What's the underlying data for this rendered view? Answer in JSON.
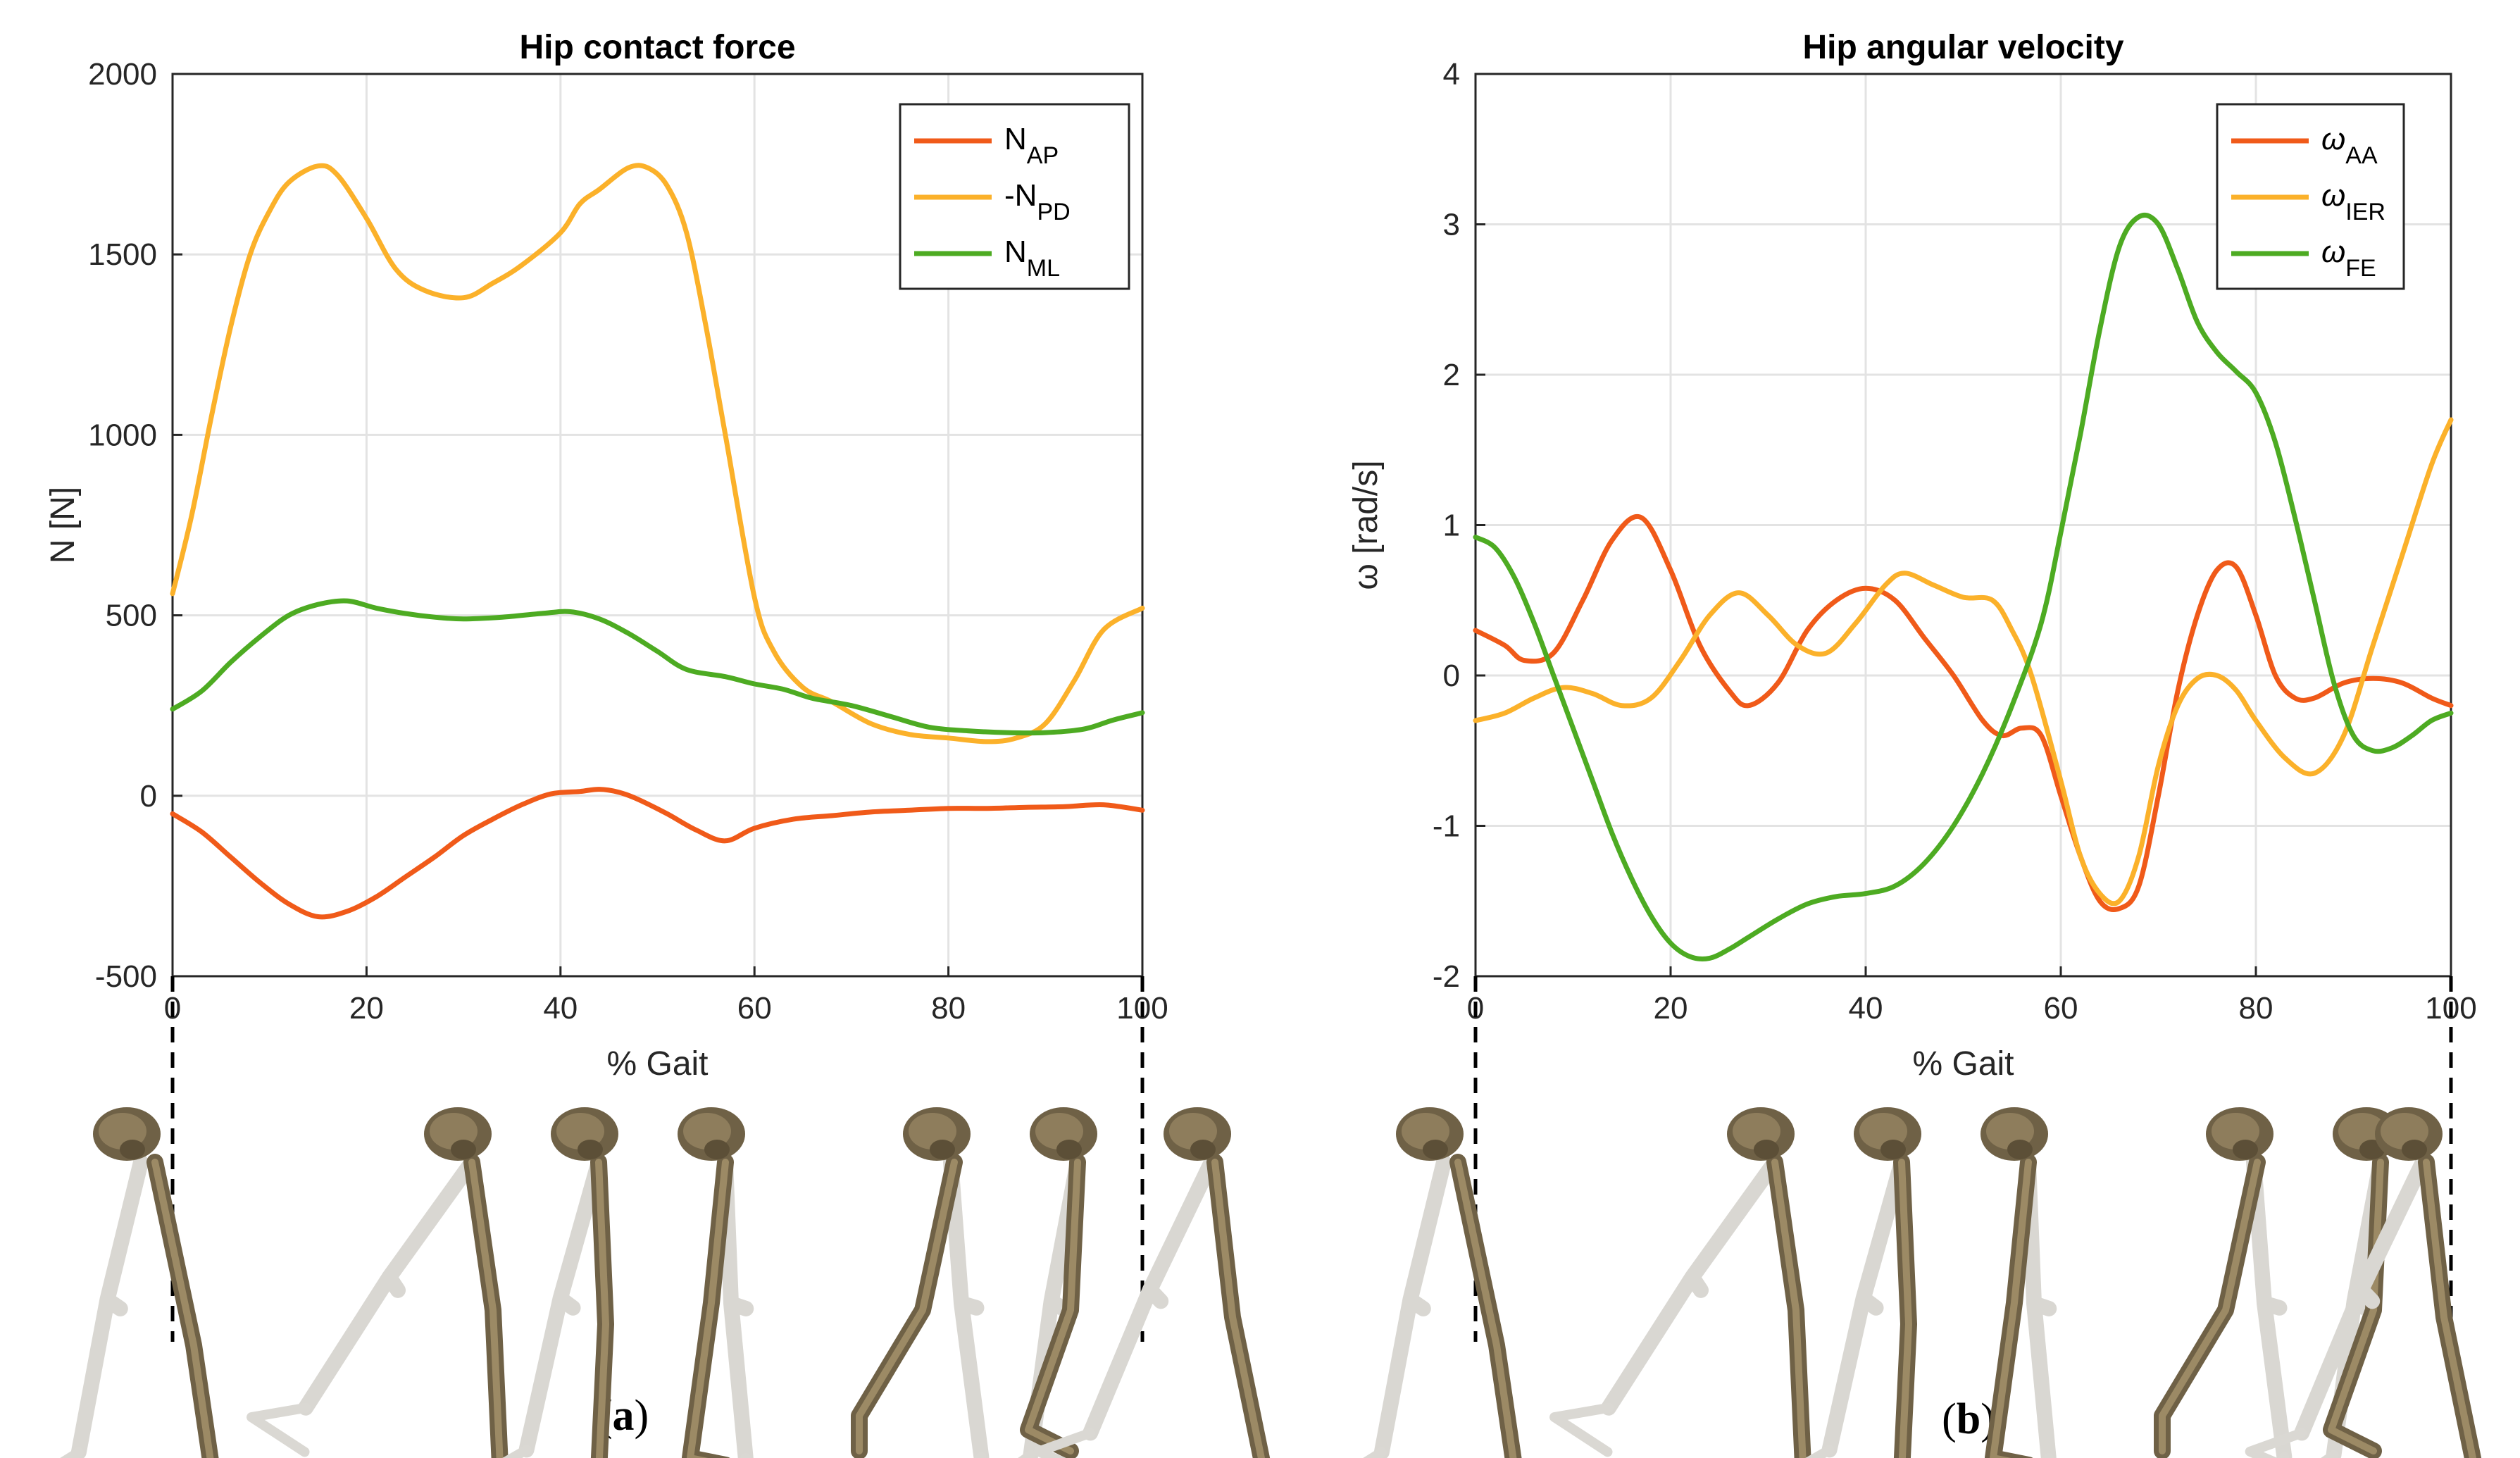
{
  "chart_data": [
    {
      "type": "line",
      "panel_label": "(a)",
      "title": "Hip contact force",
      "xlabel": "% Gait",
      "ylabel": "N [N]",
      "xlim": [
        0,
        100
      ],
      "ylim": [
        -500,
        2000
      ],
      "xticks": [
        "0",
        "20",
        "40",
        "60",
        "80",
        "100"
      ],
      "yticks": [
        "-500",
        "0",
        "500",
        "1000",
        "1500",
        "2000"
      ],
      "grid": true,
      "legend": "top-right",
      "series": [
        {
          "name": "N_AP",
          "label_main": "N",
          "label_sub": "AP",
          "color": "#f05a19",
          "x": [
            0,
            3,
            6,
            9,
            12,
            15,
            18,
            21,
            24,
            27,
            30,
            33,
            36,
            39,
            42,
            44,
            46,
            48,
            51,
            54,
            57,
            60,
            64,
            68,
            72,
            76,
            80,
            84,
            88,
            92,
            96,
            100
          ],
          "y": [
            -50,
            -100,
            -170,
            -240,
            -300,
            -335,
            -320,
            -280,
            -225,
            -170,
            -110,
            -65,
            -25,
            5,
            12,
            18,
            10,
            -10,
            -50,
            -95,
            -125,
            -90,
            -65,
            -55,
            -45,
            -40,
            -35,
            -35,
            -32,
            -30,
            -25,
            -40
          ]
        },
        {
          "name": "-N_PD",
          "label_main": "-N",
          "label_sub": "PD",
          "color": "#fbb12a",
          "x": [
            0,
            2,
            4,
            6,
            8,
            10,
            12,
            15,
            17,
            20,
            23,
            26,
            30,
            33,
            36,
            40,
            42,
            44,
            47,
            49,
            51,
            53,
            55,
            57,
            60,
            62,
            65,
            68,
            72,
            76,
            80,
            84,
            87,
            90,
            93,
            96,
            100
          ],
          "y": [
            560,
            780,
            1050,
            1300,
            1500,
            1620,
            1700,
            1745,
            1720,
            1600,
            1460,
            1400,
            1380,
            1420,
            1470,
            1560,
            1640,
            1680,
            1740,
            1740,
            1690,
            1560,
            1300,
            1000,
            550,
            400,
            300,
            260,
            200,
            170,
            160,
            150,
            160,
            200,
            320,
            460,
            520
          ]
        },
        {
          "name": "N_ML",
          "label_main": "N",
          "label_sub": "ML",
          "color": "#4dab22",
          "x": [
            0,
            3,
            6,
            9,
            12,
            15,
            18,
            21,
            24,
            27,
            30,
            34,
            38,
            41,
            44,
            47,
            50,
            53,
            57,
            60,
            63,
            66,
            70,
            74,
            78,
            82,
            86,
            90,
            94,
            97,
            100
          ],
          "y": [
            240,
            290,
            370,
            440,
            500,
            530,
            540,
            520,
            505,
            495,
            490,
            495,
            505,
            510,
            490,
            450,
            400,
            350,
            330,
            310,
            295,
            270,
            250,
            220,
            190,
            180,
            175,
            175,
            185,
            210,
            230
          ]
        }
      ]
    },
    {
      "type": "line",
      "panel_label": "(b)",
      "title": "Hip angular velocity",
      "xlabel": "% Gait",
      "ylabel": "ω [rad/s]",
      "xlim": [
        0,
        100
      ],
      "ylim": [
        -2,
        4
      ],
      "xticks": [
        "0",
        "20",
        "40",
        "60",
        "80",
        "100"
      ],
      "yticks": [
        "-2",
        "-1",
        "0",
        "1",
        "2",
        "3",
        "4"
      ],
      "grid": true,
      "legend": "top-right",
      "series": [
        {
          "name": "ω_AA",
          "label_main": "ω",
          "label_sub": "AA",
          "color": "#f05a19",
          "x": [
            0,
            3,
            5,
            8,
            11,
            14,
            17,
            20,
            23,
            26,
            28,
            31,
            34,
            37,
            40,
            43,
            46,
            49,
            52,
            54,
            56,
            58,
            60,
            62,
            64,
            66,
            68,
            70,
            72,
            74,
            76,
            78,
            80,
            82,
            84,
            86,
            89,
            92,
            95,
            98,
            100
          ],
          "y": [
            0.3,
            0.2,
            0.1,
            0.15,
            0.5,
            0.9,
            1.05,
            0.7,
            0.2,
            -0.1,
            -0.2,
            -0.05,
            0.3,
            0.5,
            0.58,
            0.5,
            0.25,
            0.0,
            -0.3,
            -0.4,
            -0.35,
            -0.4,
            -0.8,
            -1.2,
            -1.5,
            -1.55,
            -1.4,
            -0.8,
            -0.1,
            0.4,
            0.7,
            0.72,
            0.4,
            0.0,
            -0.15,
            -0.15,
            -0.05,
            -0.02,
            -0.05,
            -0.15,
            -0.2
          ]
        },
        {
          "name": "ω_IER",
          "label_main": "ω",
          "label_sub": "IER",
          "color": "#fbb12a",
          "x": [
            0,
            3,
            6,
            9,
            12,
            15,
            18,
            21,
            24,
            27,
            30,
            33,
            36,
            39,
            42,
            44,
            47,
            50,
            53,
            55,
            57,
            60,
            62,
            64,
            66,
            68,
            70,
            72,
            74,
            76,
            78,
            80,
            83,
            86,
            89,
            92,
            95,
            98,
            100
          ],
          "y": [
            -0.3,
            -0.25,
            -0.15,
            -0.08,
            -0.12,
            -0.2,
            -0.15,
            0.1,
            0.4,
            0.55,
            0.4,
            0.2,
            0.15,
            0.35,
            0.6,
            0.68,
            0.6,
            0.52,
            0.5,
            0.3,
            0.0,
            -0.7,
            -1.2,
            -1.45,
            -1.5,
            -1.2,
            -0.6,
            -0.2,
            -0.02,
            0.0,
            -0.1,
            -0.3,
            -0.55,
            -0.65,
            -0.4,
            0.2,
            0.8,
            1.4,
            1.7
          ]
        },
        {
          "name": "ω_FE",
          "label_main": "ω",
          "label_sub": "FE",
          "color": "#4dab22",
          "x": [
            0,
            2,
            4,
            6,
            8,
            10,
            12,
            14,
            16,
            18,
            20,
            22,
            24,
            26,
            28,
            31,
            34,
            37,
            40,
            43,
            46,
            49,
            52,
            55,
            58,
            60,
            62,
            64,
            66,
            68,
            70,
            72,
            74,
            76,
            78,
            80,
            82,
            84,
            86,
            88,
            90,
            92,
            94,
            96,
            98,
            100
          ],
          "y": [
            0.92,
            0.85,
            0.65,
            0.35,
            0.0,
            -0.35,
            -0.7,
            -1.05,
            -1.35,
            -1.6,
            -1.78,
            -1.87,
            -1.88,
            -1.82,
            -1.74,
            -1.62,
            -1.52,
            -1.47,
            -1.45,
            -1.4,
            -1.25,
            -1.0,
            -0.65,
            -0.2,
            0.35,
            0.95,
            1.6,
            2.3,
            2.85,
            3.05,
            3.0,
            2.7,
            2.35,
            2.15,
            2.02,
            1.88,
            1.55,
            1.05,
            0.5,
            -0.05,
            -0.4,
            -0.5,
            -0.48,
            -0.4,
            -0.3,
            -0.25
          ]
        }
      ]
    }
  ],
  "skeleton_strip": {
    "figure_count": 7,
    "description_icon": "leg-skeleton-icon"
  }
}
